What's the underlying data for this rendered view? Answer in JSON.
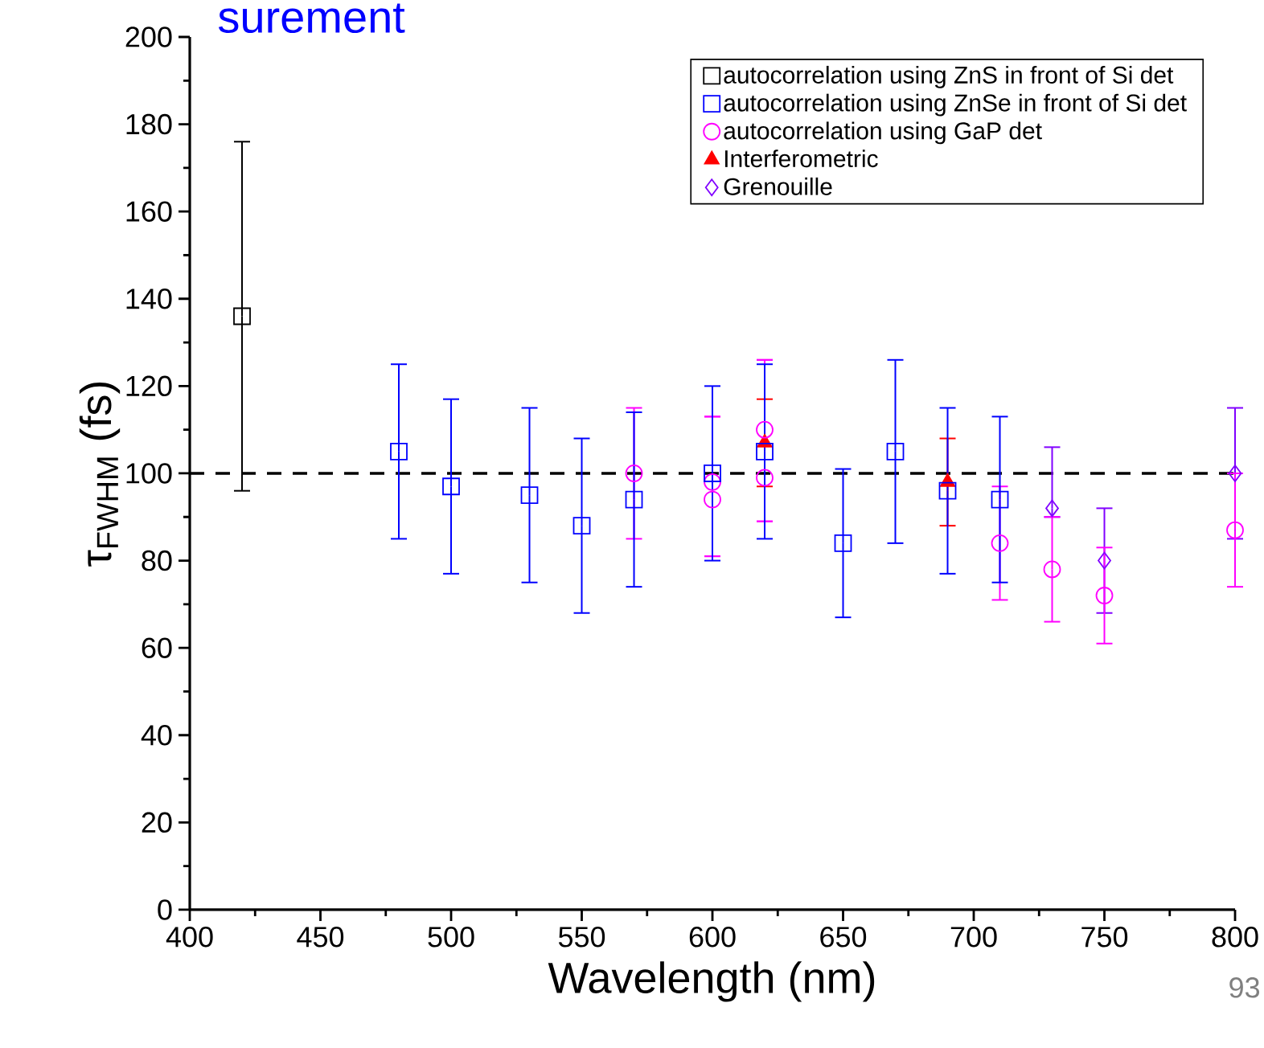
{
  "chart_data": {
    "type": "scatter",
    "title": "surement",
    "xlabel": "Wavelength (nm)",
    "ylabel": "τ$_{FWHM}$ (fs)",
    "annotations": [
      "93"
    ],
    "xlim": [
      400,
      800
    ],
    "xticks": [
      400,
      450,
      500,
      550,
      600,
      650,
      700,
      750,
      800
    ],
    "ylim": [
      0,
      200
    ],
    "yticks": [
      0,
      20,
      40,
      60,
      80,
      100,
      120,
      140,
      160,
      180,
      200
    ],
    "legend": "top right",
    "ref_lines": [
      {
        "axis": "y",
        "value": 100,
        "color": "#000000",
        "line_style": "dashed"
      }
    ],
    "series": [
      {
        "name": "autocorrelation using ZnS in front of Si det",
        "color": "#000000",
        "marker": "square",
        "x": [
          420
        ],
        "values": [
          136
        ],
        "errors": [
          40
        ]
      },
      {
        "name": "autocorrelation using ZnSe in front of Si det",
        "color": "#0000ff",
        "marker": "square",
        "x": [
          480,
          500,
          530,
          550,
          570,
          600,
          620,
          650,
          670,
          690,
          710
        ],
        "values": [
          105,
          97,
          95,
          88,
          94,
          100,
          105,
          84,
          105,
          96,
          94
        ],
        "errors": [
          20,
          20,
          20,
          20,
          20,
          20,
          20,
          17,
          21,
          19,
          19
        ]
      },
      {
        "name": "autocorrelation using GaP det",
        "color": "#ff00ff",
        "marker": "circle",
        "x": [
          570,
          600,
          600,
          620,
          620,
          710,
          730,
          750,
          800
        ],
        "values": [
          100,
          98,
          94,
          110,
          99,
          84,
          78,
          72,
          87
        ],
        "errors": [
          15,
          [
            81,
            113
          ],
          [
            81,
            113
          ],
          [
            89,
            126
          ],
          [
            89,
            126
          ],
          13,
          12,
          11,
          13
        ]
      },
      {
        "name": "Interferometric",
        "color": "#ff0000",
        "marker": "triangle",
        "x": [
          620,
          690
        ],
        "values": [
          107,
          98
        ],
        "errors": [
          10,
          10
        ]
      },
      {
        "name": "Grenouille",
        "color": "#8000ff",
        "marker": "diamond",
        "x": [
          730,
          750,
          800
        ],
        "values": [
          92,
          80,
          100
        ],
        "errors": [
          [
            90,
            106
          ],
          12,
          15
        ]
      }
    ]
  }
}
